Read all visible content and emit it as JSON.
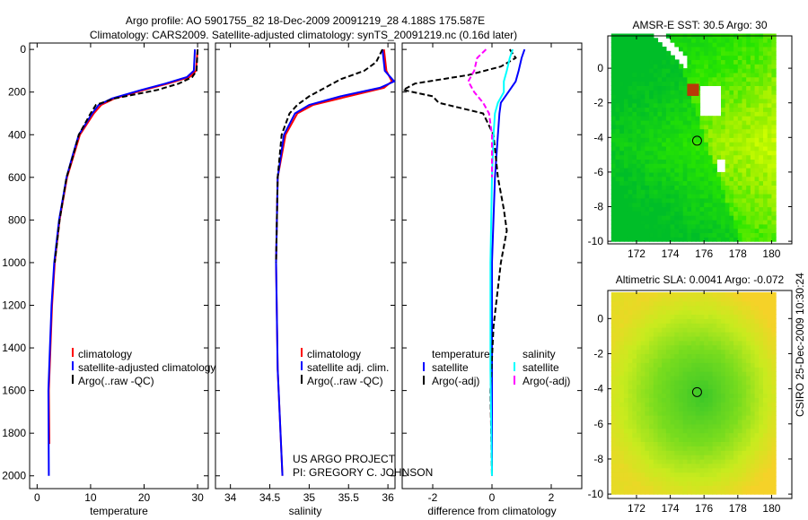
{
  "title_line1": "Argo profile: AO 5901755_82 18-Dec-2009 20091219_28 4.188S 175.587E",
  "title_line2": "Climatology: CARS2009. Satellite-adjusted climatology: synTS_20091219.nc (0.16d later)",
  "credit_line1": "US ARGO PROJECT",
  "credit_line2": "PI: GREGORY C. JOHNSON",
  "side_stamp": "CSIRO 25-Dec-2009 10:30:24",
  "colors": {
    "red": "#ff0000",
    "blue": "#0000ff",
    "black": "#000000",
    "cyan": "#00ffff",
    "magenta": "#ff00ff"
  },
  "chart_data": [
    {
      "type": "line",
      "xlabel": "temperature",
      "ylabel": "",
      "xlim": [
        -1.4,
        32
      ],
      "ylim": [
        2060,
        -30
      ],
      "xticks": [
        0,
        10,
        20,
        30
      ],
      "yticks": [
        0,
        200,
        400,
        600,
        800,
        1000,
        1200,
        1400,
        1600,
        1800,
        2000
      ],
      "legend": [
        "climatology",
        "satellite-adjusted climatology",
        "Argo(..raw -QC)"
      ],
      "series": [
        {
          "name": "climatology",
          "color": "red",
          "dash": false,
          "depth": [
            0,
            100,
            130,
            160,
            190,
            230,
            260,
            300,
            400,
            500,
            600,
            800,
            1000,
            1200,
            1400,
            1600,
            1850
          ],
          "value": [
            30.0,
            29.7,
            28.5,
            24.5,
            20,
            14.5,
            12.0,
            10.6,
            8.0,
            6.8,
            5.6,
            4.2,
            3.3,
            2.8,
            2.5,
            2.2,
            2.3
          ]
        },
        {
          "name": "satellite-adjusted climatology",
          "color": "blue",
          "dash": false,
          "depth": [
            0,
            100,
            130,
            160,
            190,
            230,
            260,
            300,
            400,
            500,
            600,
            800,
            1000,
            1200,
            1400,
            1600,
            2000
          ],
          "value": [
            29.5,
            29.3,
            28.0,
            24.0,
            19.5,
            14.0,
            11.5,
            10.3,
            7.8,
            6.6,
            5.5,
            4.1,
            3.2,
            2.7,
            2.4,
            2.1,
            2.2
          ]
        },
        {
          "name": "Argo(..raw -QC)",
          "color": "black",
          "dash": true,
          "depth": [
            0,
            100,
            130,
            160,
            190,
            230,
            260,
            300,
            400,
            500,
            600,
            800,
            1000
          ],
          "value": [
            30.0,
            29.8,
            29.0,
            26.5,
            22.5,
            14.5,
            11.0,
            10.0,
            7.8,
            6.7,
            5.5,
            4.2,
            3.3
          ]
        }
      ]
    },
    {
      "type": "line",
      "xlabel": "salinity",
      "ylabel": "",
      "xlim": [
        33.81,
        36.09
      ],
      "ylim": [
        2060,
        -30
      ],
      "xticks": [
        34,
        34.5,
        35,
        35.5,
        36
      ],
      "legend": [
        "climatology",
        "satellite adj. clim.",
        "Argo(..raw -QC)"
      ],
      "series": [
        {
          "name": "climatology",
          "color": "red",
          "dash": false,
          "depth": [
            0,
            100,
            150,
            180,
            220,
            260,
            300,
            400,
            600,
            1000,
            1500,
            2000
          ],
          "value": [
            35.95,
            35.98,
            36.05,
            35.95,
            35.5,
            35.05,
            34.85,
            34.7,
            34.6,
            34.58,
            34.6,
            34.66
          ]
        },
        {
          "name": "satellite adj. clim.",
          "color": "blue",
          "dash": false,
          "depth": [
            0,
            100,
            150,
            180,
            220,
            260,
            300,
            400,
            600,
            1000,
            1500,
            2000
          ],
          "value": [
            35.93,
            35.96,
            36.08,
            35.9,
            35.4,
            35.0,
            34.82,
            34.68,
            34.6,
            34.58,
            34.6,
            34.66
          ]
        },
        {
          "name": "Argo(..raw -QC)",
          "color": "black",
          "dash": true,
          "depth": [
            0,
            60,
            100,
            140,
            180,
            220,
            260,
            300,
            400,
            600,
            1000
          ],
          "value": [
            35.93,
            35.85,
            35.7,
            35.4,
            35.2,
            35.0,
            34.85,
            34.75,
            34.65,
            34.6,
            34.58
          ]
        }
      ]
    },
    {
      "type": "line",
      "xlabel": "difference from climatology",
      "ylabel": "",
      "xlim": [
        -3.03,
        3.03
      ],
      "ylim": [
        2060,
        -30
      ],
      "xticks": [
        -2,
        0,
        2
      ],
      "legend_headers": [
        "temperature",
        "salinity"
      ],
      "legend": [
        "satellite",
        "Argo(-adj)",
        "satellite",
        "Argo(-adj)"
      ],
      "series": [
        {
          "name": "temperature satellite",
          "color": "blue",
          "dash": false,
          "depth": [
            0,
            40,
            100,
            150,
            200,
            250,
            300,
            400,
            600,
            1000,
            1500,
            2000
          ],
          "value": [
            1.1,
            1.0,
            0.9,
            0.8,
            0.55,
            0.3,
            0.25,
            0.2,
            0.1,
            0.0,
            0.0,
            0.0
          ]
        },
        {
          "name": "temperature Argo(-adj)",
          "color": "black",
          "dash": true,
          "depth": [
            0,
            40,
            80,
            120,
            160,
            190,
            220,
            250,
            300,
            400,
            600,
            750,
            850,
            1000,
            1300,
            1600,
            2000
          ],
          "value": [
            0.6,
            0.8,
            0.3,
            -0.8,
            -2.6,
            -3.0,
            -2.0,
            -1.8,
            -0.3,
            0.05,
            0.2,
            0.4,
            0.5,
            0.3,
            0.05,
            -0.05,
            0.0
          ]
        },
        {
          "name": "salinity satellite",
          "color": "cyan",
          "dash": false,
          "depth": [
            0,
            40,
            100,
            150,
            200,
            250,
            300,
            400,
            600,
            1000,
            1500,
            2000
          ],
          "value": [
            0.7,
            0.6,
            0.5,
            0.4,
            0.4,
            0.2,
            0.1,
            0.05,
            0.0,
            -0.05,
            -0.05,
            0.0
          ]
        },
        {
          "name": "salinity Argo(-adj)",
          "color": "magenta",
          "dash": true,
          "depth": [
            0,
            40,
            100,
            150,
            200,
            250,
            300,
            400,
            600
          ],
          "value": [
            -0.2,
            -0.5,
            -0.6,
            -0.8,
            -0.6,
            -0.3,
            -0.1,
            0.0,
            0.0
          ]
        }
      ]
    },
    {
      "type": "heatmap",
      "title": "AMSR-E SST: 30.5 Argo: 30",
      "xlim": [
        170.3,
        181.2
      ],
      "ylim": [
        -10.15,
        1.87
      ],
      "xticks": [
        172,
        174,
        176,
        178,
        180
      ],
      "yticks": [
        0,
        -2,
        -4,
        -6,
        -8,
        -10
      ],
      "marker": {
        "lon": 175.587,
        "lat": -4.188
      }
    },
    {
      "type": "heatmap",
      "title": "Altimetric SLA: 0.0041 Argo: -0.072",
      "xlim": [
        170.3,
        181.2
      ],
      "ylim": [
        -10.25,
        1.6
      ],
      "xticks": [
        172,
        174,
        176,
        178,
        180
      ],
      "yticks": [
        0,
        -2,
        -4,
        -6,
        -8,
        -10
      ],
      "marker": {
        "lon": 175.587,
        "lat": -4.188
      }
    }
  ]
}
